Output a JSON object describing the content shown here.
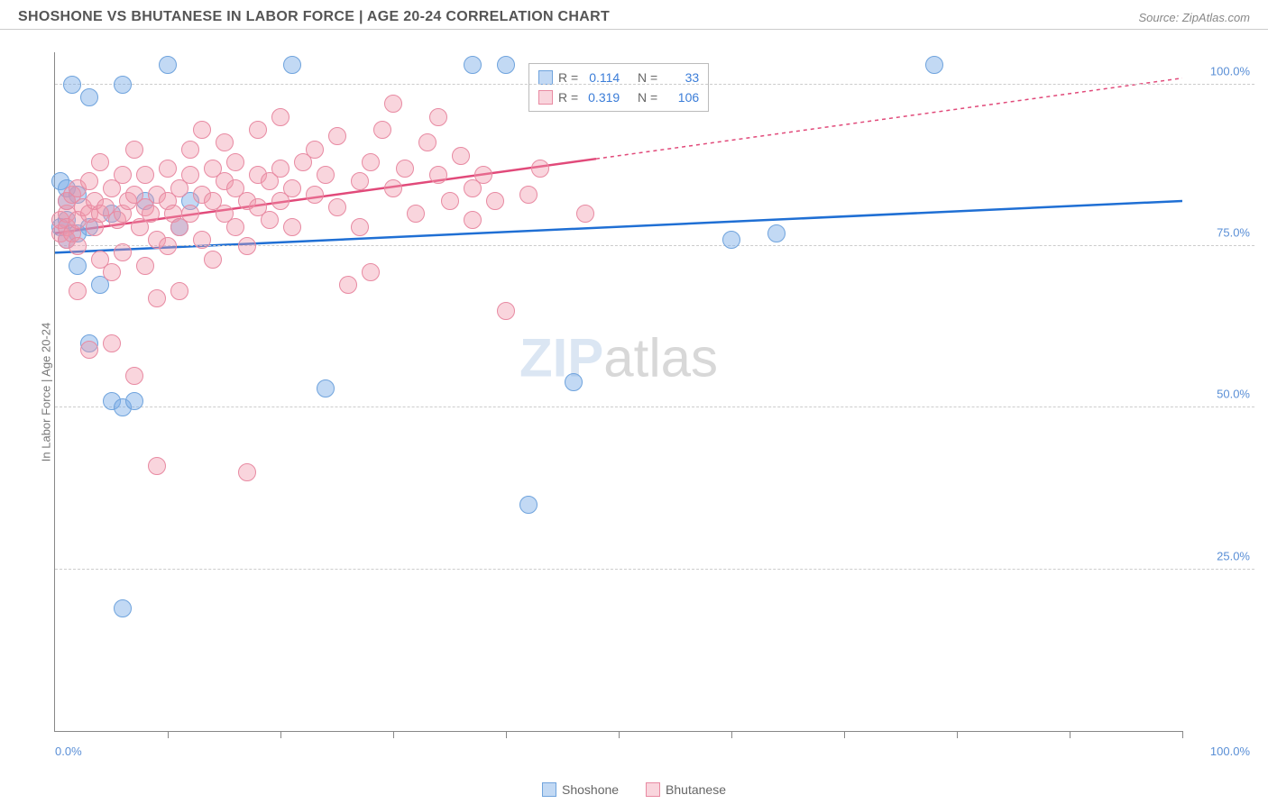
{
  "header": {
    "title": "SHOSHONE VS BHUTANESE IN LABOR FORCE | AGE 20-24 CORRELATION CHART",
    "source": "Source: ZipAtlas.com"
  },
  "chart": {
    "type": "scatter",
    "ylabel": "In Labor Force | Age 20-24",
    "xlim": [
      0,
      100
    ],
    "ylim": [
      0,
      105
    ],
    "xtick_positions_pct": [
      10,
      20,
      30,
      40,
      50,
      60,
      70,
      80,
      90,
      100
    ],
    "ytick_labels": [
      {
        "pos_pct": 25,
        "label": "25.0%"
      },
      {
        "pos_pct": 50,
        "label": "50.0%"
      },
      {
        "pos_pct": 75,
        "label": "75.0%"
      },
      {
        "pos_pct": 100,
        "label": "100.0%"
      }
    ],
    "xtick_labels": [
      {
        "pos_pct": 0,
        "label": "0.0%",
        "align": "left"
      },
      {
        "pos_pct": 100,
        "label": "100.0%",
        "align": "right"
      }
    ],
    "grid_color": "#cccccc",
    "axis_color": "#888888",
    "background_color": "#ffffff",
    "watermark": {
      "bold": "ZIP",
      "thin": "atlas"
    },
    "series": [
      {
        "name": "Shoshone",
        "color_fill": "rgba(120,170,230,0.45)",
        "color_stroke": "#6fa3dd",
        "marker_radius": 10,
        "regression": {
          "x1": 0,
          "y1": 74,
          "x2": 100,
          "y2": 82,
          "color": "#1f6fd4",
          "width": 2.5,
          "dash_after_x": 100
        },
        "points": [
          {
            "x": 0.5,
            "y": 78
          },
          {
            "x": 0.5,
            "y": 85
          },
          {
            "x": 1,
            "y": 79
          },
          {
            "x": 1,
            "y": 82
          },
          {
            "x": 1,
            "y": 84
          },
          {
            "x": 1,
            "y": 76
          },
          {
            "x": 1.5,
            "y": 100
          },
          {
            "x": 2,
            "y": 83
          },
          {
            "x": 2,
            "y": 72
          },
          {
            "x": 3,
            "y": 60
          },
          {
            "x": 3,
            "y": 98
          },
          {
            "x": 3,
            "y": 78
          },
          {
            "x": 4,
            "y": 69
          },
          {
            "x": 5,
            "y": 80
          },
          {
            "x": 5,
            "y": 51
          },
          {
            "x": 6,
            "y": 50
          },
          {
            "x": 6,
            "y": 100
          },
          {
            "x": 6,
            "y": 19
          },
          {
            "x": 7,
            "y": 51
          },
          {
            "x": 8,
            "y": 82
          },
          {
            "x": 10,
            "y": 103
          },
          {
            "x": 11,
            "y": 78
          },
          {
            "x": 12,
            "y": 82
          },
          {
            "x": 21,
            "y": 103
          },
          {
            "x": 24,
            "y": 53
          },
          {
            "x": 37,
            "y": 103
          },
          {
            "x": 40,
            "y": 103
          },
          {
            "x": 42,
            "y": 35
          },
          {
            "x": 60,
            "y": 76
          },
          {
            "x": 64,
            "y": 77
          },
          {
            "x": 78,
            "y": 103
          },
          {
            "x": 46,
            "y": 54
          },
          {
            "x": 2,
            "y": 77
          }
        ]
      },
      {
        "name": "Bhutanese",
        "color_fill": "rgba(240,150,170,0.40)",
        "color_stroke": "#e88aa2",
        "marker_radius": 10,
        "regression": {
          "x1": 0,
          "y1": 77,
          "x2": 100,
          "y2": 101,
          "color": "#e14a7a",
          "width": 2.5,
          "dash_after_x": 48
        },
        "points": [
          {
            "x": 0.5,
            "y": 77
          },
          {
            "x": 0.5,
            "y": 79
          },
          {
            "x": 1,
            "y": 80
          },
          {
            "x": 1,
            "y": 78
          },
          {
            "x": 1,
            "y": 76
          },
          {
            "x": 1,
            "y": 82
          },
          {
            "x": 1.5,
            "y": 83
          },
          {
            "x": 1.5,
            "y": 77
          },
          {
            "x": 2,
            "y": 84
          },
          {
            "x": 2,
            "y": 79
          },
          {
            "x": 2,
            "y": 75
          },
          {
            "x": 2,
            "y": 68
          },
          {
            "x": 2.5,
            "y": 81
          },
          {
            "x": 3,
            "y": 80
          },
          {
            "x": 3,
            "y": 85
          },
          {
            "x": 3,
            "y": 59
          },
          {
            "x": 3.5,
            "y": 78
          },
          {
            "x": 3.5,
            "y": 82
          },
          {
            "x": 4,
            "y": 88
          },
          {
            "x": 4,
            "y": 80
          },
          {
            "x": 4,
            "y": 73
          },
          {
            "x": 4.5,
            "y": 81
          },
          {
            "x": 5,
            "y": 84
          },
          {
            "x": 5,
            "y": 71
          },
          {
            "x": 5,
            "y": 60
          },
          {
            "x": 5.5,
            "y": 79
          },
          {
            "x": 6,
            "y": 86
          },
          {
            "x": 6,
            "y": 80
          },
          {
            "x": 6,
            "y": 74
          },
          {
            "x": 6.5,
            "y": 82
          },
          {
            "x": 7,
            "y": 55
          },
          {
            "x": 7,
            "y": 83
          },
          {
            "x": 7,
            "y": 90
          },
          {
            "x": 7.5,
            "y": 78
          },
          {
            "x": 8,
            "y": 81
          },
          {
            "x": 8,
            "y": 72
          },
          {
            "x": 8,
            "y": 86
          },
          {
            "x": 8.5,
            "y": 80
          },
          {
            "x": 9,
            "y": 83
          },
          {
            "x": 9,
            "y": 76
          },
          {
            "x": 9,
            "y": 67
          },
          {
            "x": 9,
            "y": 41
          },
          {
            "x": 10,
            "y": 82
          },
          {
            "x": 10,
            "y": 87
          },
          {
            "x": 10,
            "y": 75
          },
          {
            "x": 10.5,
            "y": 80
          },
          {
            "x": 11,
            "y": 84
          },
          {
            "x": 11,
            "y": 78
          },
          {
            "x": 11,
            "y": 68
          },
          {
            "x": 12,
            "y": 86
          },
          {
            "x": 12,
            "y": 80
          },
          {
            "x": 12,
            "y": 90
          },
          {
            "x": 13,
            "y": 83
          },
          {
            "x": 13,
            "y": 76
          },
          {
            "x": 13,
            "y": 93
          },
          {
            "x": 14,
            "y": 82
          },
          {
            "x": 14,
            "y": 87
          },
          {
            "x": 14,
            "y": 73
          },
          {
            "x": 15,
            "y": 85
          },
          {
            "x": 15,
            "y": 80
          },
          {
            "x": 15,
            "y": 91
          },
          {
            "x": 16,
            "y": 84
          },
          {
            "x": 16,
            "y": 78
          },
          {
            "x": 16,
            "y": 88
          },
          {
            "x": 17,
            "y": 82
          },
          {
            "x": 17,
            "y": 75
          },
          {
            "x": 17,
            "y": 40
          },
          {
            "x": 18,
            "y": 86
          },
          {
            "x": 18,
            "y": 81
          },
          {
            "x": 18,
            "y": 93
          },
          {
            "x": 19,
            "y": 85
          },
          {
            "x": 19,
            "y": 79
          },
          {
            "x": 20,
            "y": 87
          },
          {
            "x": 20,
            "y": 82
          },
          {
            "x": 20,
            "y": 95
          },
          {
            "x": 21,
            "y": 84
          },
          {
            "x": 21,
            "y": 78
          },
          {
            "x": 22,
            "y": 88
          },
          {
            "x": 23,
            "y": 83
          },
          {
            "x": 23,
            "y": 90
          },
          {
            "x": 24,
            "y": 86
          },
          {
            "x": 25,
            "y": 81
          },
          {
            "x": 25,
            "y": 92
          },
          {
            "x": 26,
            "y": 69
          },
          {
            "x": 27,
            "y": 85
          },
          {
            "x": 27,
            "y": 78
          },
          {
            "x": 28,
            "y": 88
          },
          {
            "x": 28,
            "y": 71
          },
          {
            "x": 29,
            "y": 93
          },
          {
            "x": 30,
            "y": 84
          },
          {
            "x": 30,
            "y": 97
          },
          {
            "x": 31,
            "y": 87
          },
          {
            "x": 32,
            "y": 80
          },
          {
            "x": 33,
            "y": 91
          },
          {
            "x": 34,
            "y": 86
          },
          {
            "x": 34,
            "y": 95
          },
          {
            "x": 35,
            "y": 82
          },
          {
            "x": 36,
            "y": 89
          },
          {
            "x": 37,
            "y": 84
          },
          {
            "x": 37,
            "y": 79
          },
          {
            "x": 38,
            "y": 86
          },
          {
            "x": 39,
            "y": 82
          },
          {
            "x": 40,
            "y": 65
          },
          {
            "x": 42,
            "y": 83
          },
          {
            "x": 43,
            "y": 87
          },
          {
            "x": 47,
            "y": 80
          }
        ]
      }
    ],
    "stats_box": {
      "rows": [
        {
          "swatch_fill": "rgba(120,170,230,0.45)",
          "swatch_stroke": "#6fa3dd",
          "r_label": "R =",
          "r_val": "0.114",
          "n_label": "N =",
          "n_val": "33"
        },
        {
          "swatch_fill": "rgba(240,150,170,0.40)",
          "swatch_stroke": "#e88aa2",
          "r_label": "R =",
          "r_val": "0.319",
          "n_label": "N =",
          "n_val": "106"
        }
      ]
    },
    "bottom_legend": [
      {
        "swatch_fill": "rgba(120,170,230,0.45)",
        "swatch_stroke": "#6fa3dd",
        "label": "Shoshone"
      },
      {
        "swatch_fill": "rgba(240,150,170,0.40)",
        "swatch_stroke": "#e88aa2",
        "label": "Bhutanese"
      }
    ]
  }
}
